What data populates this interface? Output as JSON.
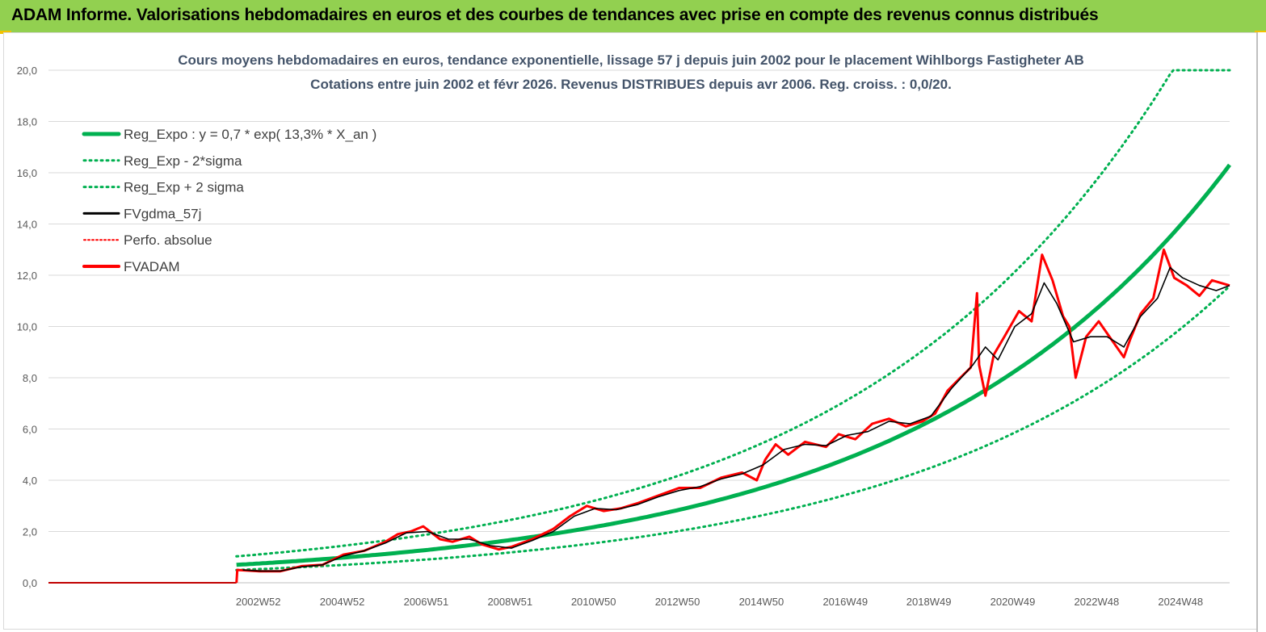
{
  "header": {
    "title": "ADAM Informe. Valorisations hebdomadaires en euros et des courbes de tendances avec prise en compte des revenus connus distribués"
  },
  "chart_data": {
    "type": "line",
    "title_line1": "Cours moyens hebdomadaires en euros, tendance exponentielle, lissage 57 j depuis juin 2002 pour le placement Wihlborgs Fastigheter AB",
    "title_line2": "Cotations entre juin 2002 et févr 2026. Revenus DISTRIBUES depuis avr 2006. Reg. croiss. : 0,0/20.",
    "xlabel": "",
    "ylabel": "",
    "ylim": [
      0,
      20
    ],
    "yticks": [
      "0,0",
      "2,0",
      "4,0",
      "6,0",
      "8,0",
      "10,0",
      "12,0",
      "14,0",
      "16,0",
      "18,0",
      "20,0"
    ],
    "xticks": [
      "2002W52",
      "2004W52",
      "2006W51",
      "2008W51",
      "2010W50",
      "2012W50",
      "2014W50",
      "2016W49",
      "2018W49",
      "2020W49",
      "2022W48",
      "2024W48"
    ],
    "xtick_years": [
      2002.97,
      2004.97,
      2006.97,
      2008.97,
      2010.96,
      2012.96,
      2014.96,
      2016.96,
      2018.95,
      2020.95,
      2022.95,
      2024.95
    ],
    "x_range": [
      1997.97,
      2026.12
    ],
    "grid": true,
    "legend_position": "top-left",
    "colors": {
      "reg": "#00b050",
      "band": "#00b050",
      "gdma": "#000000",
      "perfo": "#ff0000",
      "adam": "#ff0000"
    },
    "series": [
      {
        "name": "Reg_Expo : y = 0,7 * exp( 13,3% *  X_an )",
        "style": "solid-thick",
        "color": "#00b050"
      },
      {
        "name": "Reg_Exp - 2*sigma",
        "style": "dotted",
        "color": "#00b050"
      },
      {
        "name": "Reg_Exp + 2 sigma",
        "style": "dotted",
        "color": "#00b050"
      },
      {
        "name": "FVgdma_57j",
        "style": "solid-thin",
        "color": "#000000"
      },
      {
        "name": "Perfo. absolue",
        "style": "dotted-thin",
        "color": "#ff0000"
      },
      {
        "name": "FVADAM",
        "style": "solid-thick",
        "color": "#ff0000"
      }
    ],
    "reg_model": {
      "a": 0.7,
      "b": 0.133,
      "t0": 2002.45,
      "start": 2002.45,
      "end": 2026.12,
      "lower_factor": 0.71,
      "upper_factor": 1.47,
      "cap": 20
    },
    "zero_segment": {
      "x": [
        1997.97,
        2002.45
      ],
      "y": 0
    },
    "fvadam": {
      "x": [
        2002.45,
        2002.47,
        2003.0,
        2003.5,
        2004.0,
        2004.5,
        2005.0,
        2005.5,
        2006.0,
        2006.3,
        2006.6,
        2006.9,
        2007.3,
        2007.6,
        2008.0,
        2008.3,
        2008.7,
        2009.0,
        2009.5,
        2010.0,
        2010.4,
        2010.8,
        2011.2,
        2011.6,
        2012.0,
        2012.5,
        2013.0,
        2013.5,
        2014.0,
        2014.5,
        2014.85,
        2015.05,
        2015.3,
        2015.6,
        2016.0,
        2016.5,
        2016.8,
        2017.2,
        2017.6,
        2018.0,
        2018.4,
        2018.8,
        2019.1,
        2019.4,
        2019.7,
        2019.95,
        2020.1,
        2020.15,
        2020.3,
        2020.5,
        2020.75,
        2021.1,
        2021.4,
        2021.65,
        2021.9,
        2022.15,
        2022.3,
        2022.45,
        2022.7,
        2023.0,
        2023.3,
        2023.6,
        2023.75,
        2024.0,
        2024.3,
        2024.55,
        2024.8,
        2025.1,
        2025.4,
        2025.7,
        2026.12
      ],
      "y": [
        0.0,
        0.5,
        0.45,
        0.45,
        0.65,
        0.7,
        1.1,
        1.25,
        1.6,
        1.9,
        2.0,
        2.2,
        1.7,
        1.6,
        1.8,
        1.5,
        1.3,
        1.4,
        1.7,
        2.1,
        2.6,
        3.0,
        2.8,
        2.9,
        3.1,
        3.4,
        3.7,
        3.7,
        4.1,
        4.3,
        4.0,
        4.8,
        5.4,
        5.0,
        5.5,
        5.3,
        5.8,
        5.6,
        6.2,
        6.4,
        6.1,
        6.3,
        6.6,
        7.5,
        8.0,
        8.4,
        11.3,
        8.5,
        7.3,
        8.9,
        9.6,
        10.6,
        10.2,
        12.8,
        11.8,
        10.4,
        10.0,
        8.0,
        9.6,
        10.2,
        9.5,
        8.8,
        9.5,
        10.5,
        11.1,
        13.0,
        11.9,
        11.6,
        11.2,
        11.8,
        11.6
      ]
    },
    "fvgdma": {
      "x": [
        2002.6,
        2003.0,
        2003.5,
        2004.0,
        2004.5,
        2005.0,
        2005.5,
        2006.0,
        2006.5,
        2007.0,
        2007.5,
        2008.0,
        2008.5,
        2009.0,
        2009.5,
        2010.0,
        2010.5,
        2011.0,
        2011.5,
        2012.0,
        2012.5,
        2013.0,
        2013.5,
        2014.0,
        2014.5,
        2015.0,
        2015.5,
        2016.0,
        2016.5,
        2017.0,
        2017.5,
        2018.0,
        2018.5,
        2019.0,
        2019.5,
        2020.0,
        2020.3,
        2020.6,
        2021.0,
        2021.4,
        2021.7,
        2022.0,
        2022.4,
        2022.8,
        2023.2,
        2023.6,
        2024.0,
        2024.4,
        2024.7,
        2025.0,
        2025.4,
        2025.8,
        2026.12
      ],
      "y": [
        0.5,
        0.46,
        0.46,
        0.62,
        0.7,
        1.05,
        1.25,
        1.55,
        1.95,
        2.0,
        1.7,
        1.7,
        1.45,
        1.35,
        1.65,
        2.0,
        2.6,
        2.9,
        2.85,
        3.05,
        3.35,
        3.6,
        3.75,
        4.05,
        4.25,
        4.6,
        5.2,
        5.4,
        5.35,
        5.75,
        5.9,
        6.3,
        6.2,
        6.5,
        7.6,
        8.5,
        9.2,
        8.7,
        10.0,
        10.5,
        11.7,
        10.9,
        9.4,
        9.6,
        9.6,
        9.2,
        10.4,
        11.1,
        12.3,
        11.9,
        11.6,
        11.4,
        11.6
      ]
    }
  }
}
